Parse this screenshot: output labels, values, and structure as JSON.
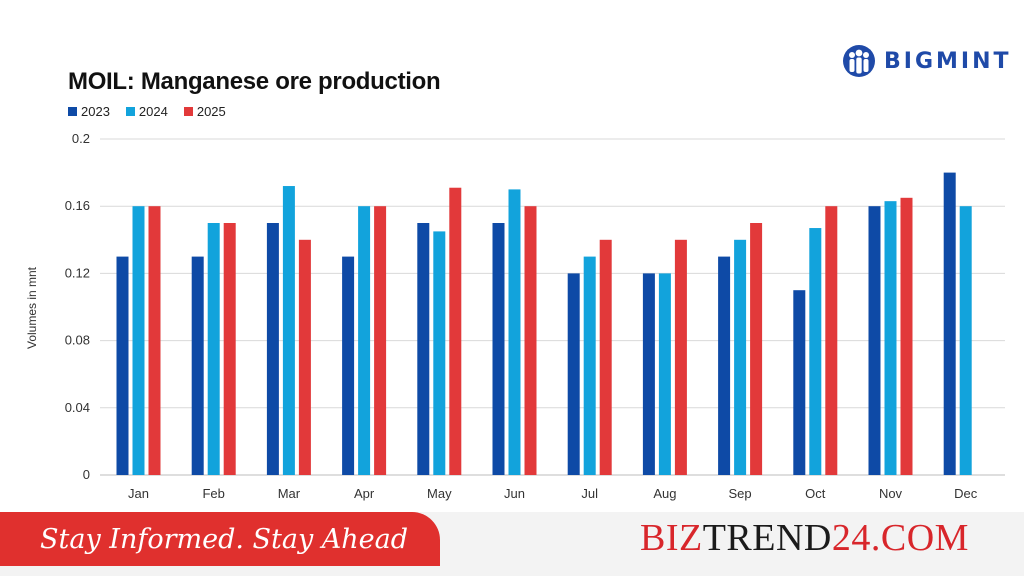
{
  "brand": {
    "name": "BIGMINT",
    "color": "#1f4aa8",
    "icon": "people-group-icon"
  },
  "footer": {
    "tagline": "Stay Informed. Stay Ahead",
    "site_part1": "BIZ",
    "site_part2": "TREND",
    "site_part3": "24.COM",
    "accent": "#e0302e"
  },
  "chart_data": {
    "type": "bar",
    "title": "MOIL: Manganese ore production",
    "ylabel": "Volumes in mnt",
    "xlabel": "",
    "ylim": [
      0,
      0.2
    ],
    "yticks": [
      "0",
      "0.04",
      "0.08",
      "0.12",
      "0.16",
      "0.2"
    ],
    "grid": true,
    "legend_position": "top-left",
    "categories": [
      "Jan",
      "Feb",
      "Mar",
      "Apr",
      "May",
      "Jun",
      "Jul",
      "Aug",
      "Sep",
      "Oct",
      "Nov",
      "Dec"
    ],
    "series": [
      {
        "name": "2023",
        "color": "#0e4aa6",
        "values": [
          0.13,
          0.13,
          0.15,
          0.13,
          0.15,
          0.15,
          0.12,
          0.12,
          0.13,
          0.11,
          0.16,
          0.18
        ]
      },
      {
        "name": "2024",
        "color": "#12a3dc",
        "values": [
          0.16,
          0.15,
          0.172,
          0.16,
          0.145,
          0.17,
          0.13,
          0.12,
          0.14,
          0.147,
          0.163,
          0.16
        ]
      },
      {
        "name": "2025",
        "color": "#e2393a",
        "values": [
          0.16,
          0.15,
          0.14,
          0.16,
          0.171,
          0.16,
          0.14,
          0.14,
          0.15,
          0.16,
          0.165,
          null
        ]
      }
    ]
  }
}
